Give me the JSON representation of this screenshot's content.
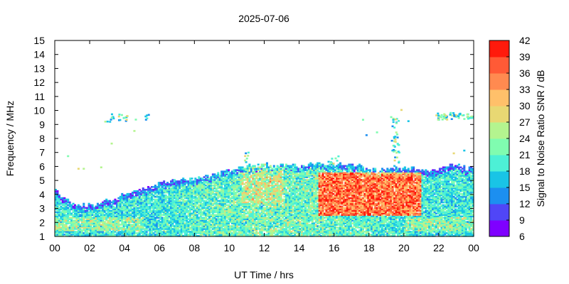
{
  "chart_data": {
    "type": "heatmap",
    "title": "2025-07-06",
    "xlabel": "UT Time / hrs",
    "ylabel": "Frequency / MHz",
    "xlim": [
      0,
      24
    ],
    "ylim": [
      1,
      15
    ],
    "x_ticks": [
      "00",
      "02",
      "04",
      "06",
      "08",
      "10",
      "12",
      "14",
      "16",
      "18",
      "20",
      "22",
      "00"
    ],
    "y_ticks": [
      "1",
      "2",
      "3",
      "4",
      "5",
      "6",
      "7",
      "8",
      "9",
      "10",
      "11",
      "12",
      "13",
      "14",
      "15"
    ],
    "colorbar": {
      "label": "Signal to Noise Ratio SNR / dB",
      "min": 6,
      "max": 42,
      "ticks": [
        "6",
        "9",
        "12",
        "15",
        "18",
        "21",
        "24",
        "27",
        "30",
        "33",
        "36",
        "39",
        "42"
      ],
      "colors": [
        "#7f00ff",
        "#5046f7",
        "#1c8ff0",
        "#19c4e6",
        "#4df0d6",
        "#80fcb0",
        "#b4f48f",
        "#e8d873",
        "#ffc06a",
        "#ff8a50",
        "#ff5a36",
        "#ff1a0c"
      ]
    },
    "upper_edge_of_signal_mhz": {
      "x_hours": [
        0,
        0.5,
        1,
        1.5,
        2,
        2.5,
        3,
        3.5,
        4,
        4.5,
        5,
        5.5,
        6,
        6.5,
        7,
        7.5,
        8,
        8.5,
        9,
        9.5,
        10,
        10.5,
        11,
        11.5,
        12,
        12.5,
        13,
        13.5,
        14,
        14.5,
        15,
        15.5,
        16,
        16.5,
        17,
        17.5,
        18,
        18.5,
        19,
        19.5,
        20,
        20.5,
        21,
        21.5,
        22,
        22.5,
        23,
        23.5,
        24
      ],
      "values": [
        4.3,
        3.7,
        3.3,
        3.2,
        3.2,
        3.3,
        3.5,
        3.7,
        4.0,
        4.2,
        4.4,
        4.6,
        4.8,
        4.9,
        5.0,
        5.0,
        5.1,
        5.2,
        5.3,
        5.5,
        5.7,
        5.8,
        6.0,
        6.0,
        6.1,
        6.0,
        6.0,
        6.0,
        6.0,
        6.1,
        6.2,
        6.1,
        6.1,
        6.2,
        6.0,
        6.0,
        5.8,
        5.6,
        5.8,
        5.9,
        5.8,
        5.8,
        5.7,
        5.6,
        5.8,
        6.0,
        6.1,
        5.8,
        5.8
      ]
    },
    "peak_snr_region": {
      "x_hours_range": [
        15,
        21
      ],
      "frequency_mhz_range": [
        2.5,
        5.5
      ],
      "snr_db": 42
    }
  }
}
